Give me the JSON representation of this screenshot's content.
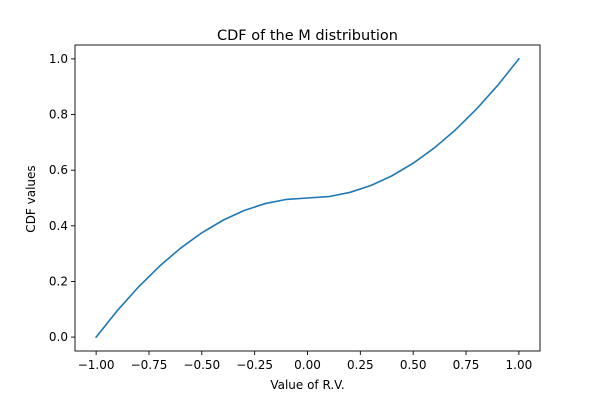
{
  "chart_data": {
    "type": "line",
    "title": "CDF of the M distribution",
    "xlabel": "Value of R.V.",
    "ylabel": "CDF values",
    "xlim": [
      -1.1,
      1.1
    ],
    "ylim": [
      -0.05,
      1.05
    ],
    "grid": false,
    "x_ticks": [
      -1.0,
      -0.75,
      -0.5,
      -0.25,
      0.0,
      0.25,
      0.5,
      0.75,
      1.0
    ],
    "x_tick_labels": [
      "−1.00",
      "−0.75",
      "−0.50",
      "−0.25",
      "0.00",
      "0.25",
      "0.50",
      "0.75",
      "1.00"
    ],
    "y_ticks": [
      0.0,
      0.2,
      0.4,
      0.6,
      0.8,
      1.0
    ],
    "y_tick_labels": [
      "0.0",
      "0.2",
      "0.4",
      "0.6",
      "0.8",
      "1.0"
    ],
    "series": [
      {
        "color": "#1f77b4",
        "x": [
          -1.0,
          -0.9,
          -0.8,
          -0.7,
          -0.6,
          -0.5,
          -0.4,
          -0.3,
          -0.2,
          -0.1,
          0.0,
          0.1,
          0.2,
          0.3,
          0.4,
          0.5,
          0.6,
          0.7,
          0.8,
          0.9,
          1.0
        ],
        "y": [
          0.0,
          0.095,
          0.18,
          0.255,
          0.32,
          0.375,
          0.42,
          0.455,
          0.48,
          0.495,
          0.5,
          0.505,
          0.52,
          0.545,
          0.58,
          0.625,
          0.68,
          0.745,
          0.82,
          0.905,
          1.0
        ]
      }
    ]
  }
}
